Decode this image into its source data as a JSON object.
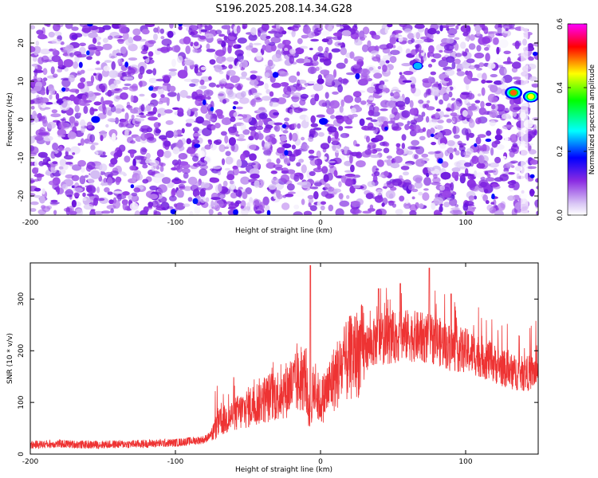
{
  "chart_data": [
    {
      "type": "heatmap",
      "title": "S196.2025.208.14.34.G28",
      "xlabel": "Height of straight line (km)",
      "ylabel": "Frequency (Hz)",
      "xlim": [
        -200,
        150
      ],
      "ylim": [
        -25,
        25
      ],
      "x_ticks": [
        "-200",
        "-100",
        "0",
        "100"
      ],
      "y_ticks": [
        "20",
        "10",
        "0",
        "-10",
        "-20"
      ],
      "colorbar": {
        "label": "Normalized spectral amplitude",
        "range": [
          0.0,
          0.6
        ],
        "ticks": [
          "0.0",
          "0.2",
          "0.4",
          "0.6"
        ],
        "colors": [
          "#ffffff",
          "#8a2be2",
          "#0000ff",
          "#00ffff",
          "#00ff00",
          "#ffff00",
          "#ff0000",
          "#ff00ff"
        ]
      },
      "background_amplitude": [
        0.0,
        0.2
      ],
      "peaks": [
        {
          "x": 133,
          "y": 7,
          "value": 0.5
        },
        {
          "x": 145,
          "y": 6,
          "value": 0.45
        },
        {
          "x": 67,
          "y": 14,
          "value": 0.25
        },
        {
          "x": -155,
          "y": 0,
          "value": 0.2
        },
        {
          "x": 2,
          "y": -0.5,
          "value": 0.2
        },
        {
          "x": 0,
          "y": 10,
          "value": 0.15
        }
      ]
    },
    {
      "type": "line",
      "xlabel": "Height of straight line (km)",
      "ylabel": "SNR (10 * v/v)",
      "xlim": [
        -200,
        150
      ],
      "ylim": [
        0,
        370
      ],
      "x_ticks": [
        "-200",
        "-100",
        "0",
        "100"
      ],
      "y_ticks": [
        "300",
        "200",
        "100",
        "0"
      ],
      "grid": false,
      "color": "#ee3333",
      "series": [
        {
          "x": [
            -200,
            -180,
            -160,
            -140,
            -120,
            -100,
            -90,
            -80,
            -75,
            -70,
            -60,
            -50,
            -40,
            -30,
            -20,
            -10,
            -7,
            -5,
            0,
            10,
            20,
            30,
            40,
            50,
            60,
            70,
            80,
            90,
            100,
            110,
            120,
            130,
            140,
            150
          ],
          "values": [
            18,
            20,
            18,
            19,
            20,
            22,
            25,
            28,
            38,
            60,
            75,
            90,
            105,
            115,
            130,
            150,
            50,
            130,
            100,
            150,
            185,
            205,
            220,
            225,
            230,
            225,
            220,
            205,
            200,
            190,
            175,
            160,
            155,
            160
          ]
        }
      ],
      "spikes": [
        {
          "x": -7,
          "value": 365
        },
        {
          "x": 75,
          "value": 360
        },
        {
          "x": 55,
          "value": 330
        },
        {
          "x": 40,
          "value": 320
        },
        {
          "x": 90,
          "value": 310
        }
      ]
    }
  ]
}
